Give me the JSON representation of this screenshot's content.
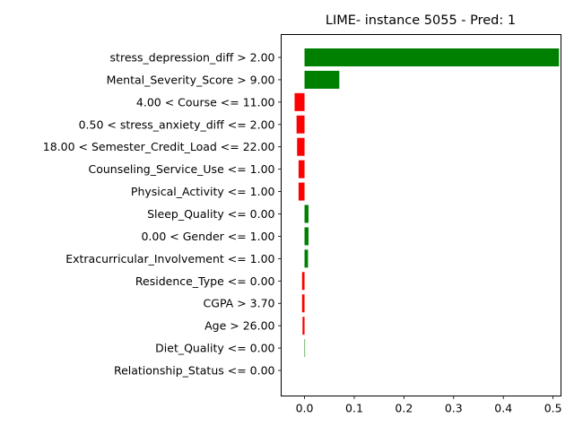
{
  "chart_data": {
    "type": "bar",
    "orientation": "horizontal",
    "title": "LIME- instance 5055 - Pred: 1",
    "xlabel": "",
    "ylabel": "",
    "xlim": [
      -0.047,
      0.516
    ],
    "xticks": [
      0.0,
      0.1,
      0.2,
      0.3,
      0.4,
      0.5
    ],
    "xtick_labels": [
      "0.0",
      "0.1",
      "0.2",
      "0.3",
      "0.4",
      "0.5"
    ],
    "grid": false,
    "colors": {
      "positive": "#008000",
      "negative": "#ff0000"
    },
    "categories": [
      "stress_depression_diff > 2.00",
      "Mental_Severity_Score > 9.00",
      "4.00 < Course <= 11.00",
      "0.50 < stress_anxiety_diff <= 2.00",
      "18.00 < Semester_Credit_Load <= 22.00",
      "Counseling_Service_Use <= 1.00",
      "Physical_Activity <= 1.00",
      "Sleep_Quality <= 0.00",
      "0.00 < Gender <= 1.00",
      "Extracurricular_Involvement <= 1.00",
      "Residence_Type <= 0.00",
      "CGPA > 3.70",
      "Age > 26.00",
      "Diet_Quality <= 0.00",
      "Relationship_Status <= 0.00"
    ],
    "values": [
      0.512,
      0.07,
      -0.02,
      -0.016,
      -0.015,
      -0.012,
      -0.012,
      0.008,
      0.008,
      0.007,
      -0.005,
      -0.005,
      -0.004,
      0.001,
      0.0
    ]
  }
}
